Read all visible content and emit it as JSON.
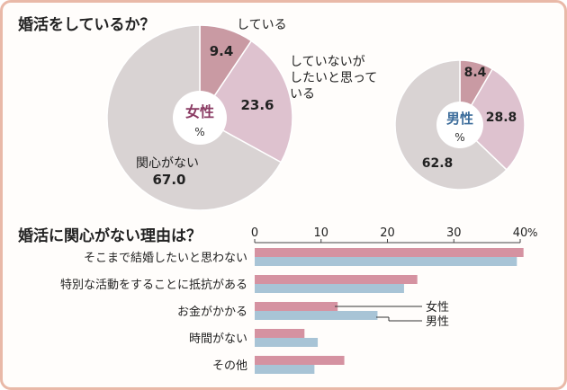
{
  "colors": {
    "frame": "#e9b9a8",
    "slice_doing": "#c99aa3",
    "slice_want": "#dec2cf",
    "slice_none": "#d9d3d3",
    "bar_female": "#d592a1",
    "bar_male": "#a8c4d6",
    "female_label": "#8a3b63",
    "male_label": "#3d6d9b"
  },
  "chart_data": [
    {
      "type": "pie",
      "title": "婚活をしているか？",
      "center_label": "女性",
      "center_unit": "%",
      "slices": [
        {
          "label": "している",
          "value": 9.4
        },
        {
          "label": "していないがしたいと思っている",
          "value": 23.6
        },
        {
          "label": "関心がない",
          "value": 67.0
        }
      ],
      "labels": {
        "doing": "している",
        "want_lines": [
          "していないが",
          "したいと思って",
          "いる"
        ],
        "none": "関心がない"
      },
      "value_labels": [
        "9.4",
        "23.6",
        "67.0"
      ]
    },
    {
      "type": "pie",
      "center_label": "男性",
      "center_unit": "%",
      "slices": [
        {
          "label": "している",
          "value": 8.4
        },
        {
          "label": "していないがしたいと思っている",
          "value": 28.8
        },
        {
          "label": "関心がない",
          "value": 62.8
        }
      ],
      "value_labels": [
        "8.4",
        "28.8",
        "62.8"
      ]
    },
    {
      "type": "bar",
      "orientation": "horizontal",
      "title": "婚活に関心がない理由は？",
      "categories": [
        "そこまで結婚したいと思わない",
        "特別な活動をすることに抵抗がある",
        "お金がかかる",
        "時間がない",
        "その他"
      ],
      "series": [
        {
          "name": "女性",
          "values": [
            40.5,
            24.5,
            12.5,
            7.5,
            13.5
          ]
        },
        {
          "name": "男性",
          "values": [
            39.5,
            22.5,
            18.5,
            9.5,
            9.0
          ]
        }
      ],
      "xlim": [
        0,
        40
      ],
      "ticks": [
        "0",
        "10",
        "20",
        "30",
        "40"
      ],
      "tick_unit": "%"
    }
  ]
}
